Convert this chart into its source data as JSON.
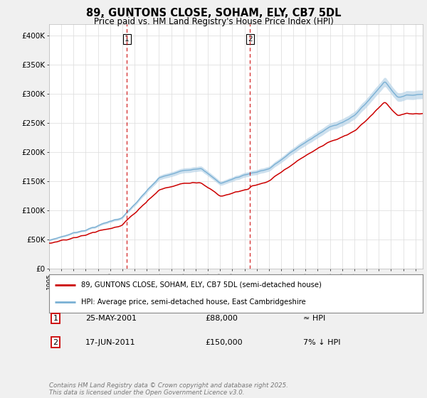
{
  "title_line1": "89, GUNTONS CLOSE, SOHAM, ELY, CB7 5DL",
  "title_line2": "Price paid vs. HM Land Registry's House Price Index (HPI)",
  "legend_line1": "89, GUNTONS CLOSE, SOHAM, ELY, CB7 5DL (semi-detached house)",
  "legend_line2": "HPI: Average price, semi-detached house, East Cambridgeshire",
  "footnote": "Contains HM Land Registry data © Crown copyright and database right 2025.\nThis data is licensed under the Open Government Licence v3.0.",
  "table_rows": [
    {
      "num": "1",
      "date": "25-MAY-2001",
      "price": "£88,000",
      "hpi": "≈ HPI"
    },
    {
      "num": "2",
      "date": "17-JUN-2011",
      "price": "£150,000",
      "hpi": "7% ↓ HPI"
    }
  ],
  "sale1_year": 2001.38,
  "sale1_price": 88000,
  "sale2_year": 2011.46,
  "sale2_price": 150000,
  "vline_color": "#cc0000",
  "price_line_color": "#cc0000",
  "hpi_line_color": "#7ab0d4",
  "hpi_fill_color": "#b8d4e8",
  "ylim": [
    0,
    420000
  ],
  "yticks": [
    0,
    50000,
    100000,
    150000,
    200000,
    250000,
    300000,
    350000,
    400000
  ],
  "ytick_labels": [
    "£0",
    "£50K",
    "£100K",
    "£150K",
    "£200K",
    "£250K",
    "£300K",
    "£350K",
    "£400K"
  ],
  "background_color": "#f0f0f0",
  "plot_bg_color": "#ffffff",
  "grid_color": "#e0e0e0"
}
